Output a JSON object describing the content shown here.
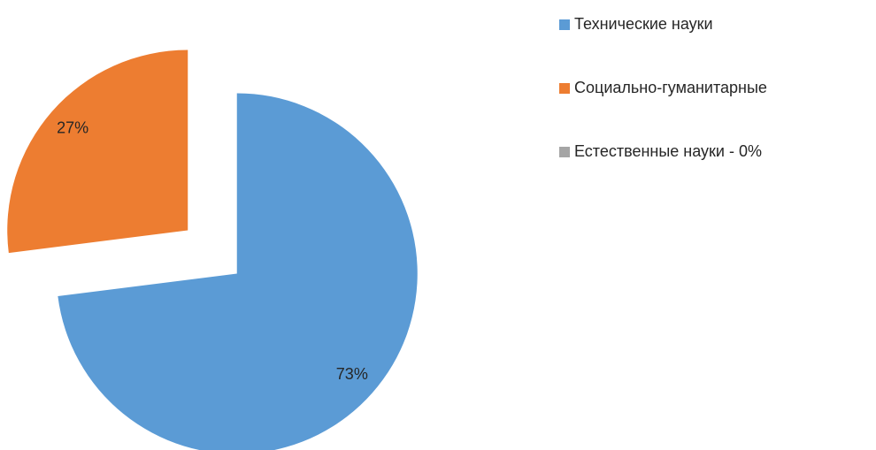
{
  "chart_data": {
    "type": "pie",
    "categories": [
      "Технические науки",
      "Социально-гуманитарные",
      "Естественные науки - 0%"
    ],
    "values": [
      73,
      27,
      0
    ],
    "value_labels": [
      "73%",
      "27%",
      "0%"
    ],
    "colors": [
      "#5b9bd5",
      "#ed7d31",
      "#a5a5a5"
    ],
    "legend": "right"
  }
}
